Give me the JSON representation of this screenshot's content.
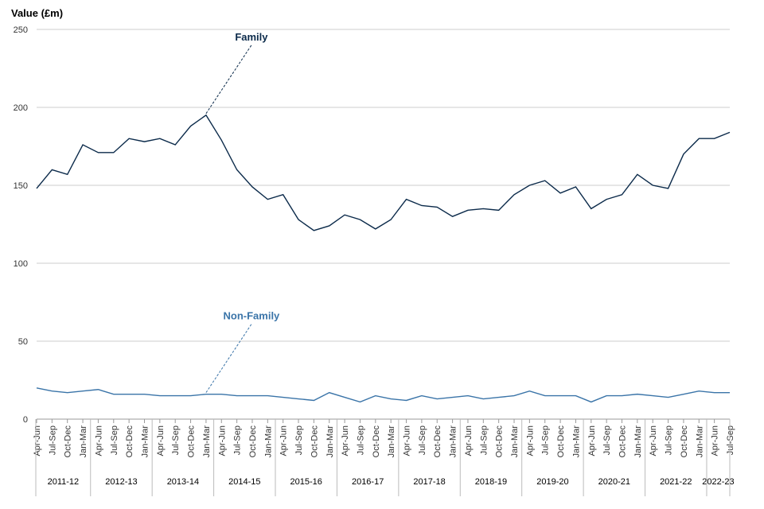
{
  "chart_data": {
    "type": "line",
    "title": "",
    "xlabel": "",
    "ylabel": "Value (£m)",
    "ylim": [
      0,
      250
    ],
    "yticks": [
      0,
      50,
      100,
      150,
      200,
      250
    ],
    "grid": true,
    "legend": "inline-labels",
    "colors": {
      "Family": "#0b2a4a",
      "Non-Family": "#3a74a8",
      "grid": "#cccccc"
    },
    "x": [
      "Apr-Jun",
      "Jul-Sep",
      "Oct-Dec",
      "Jan-Mar",
      "Apr-Jun",
      "Jul-Sep",
      "Oct-Dec",
      "Jan-Mar",
      "Apr-Jun",
      "Jul-Sep",
      "Oct-Dec",
      "Jan-Mar",
      "Apr-Jun",
      "Jul-Sep",
      "Oct-Dec",
      "Jan-Mar",
      "Apr-Jun",
      "Jul-Sep",
      "Oct-Dec",
      "Jan-Mar",
      "Apr-Jun",
      "Jul-Sep",
      "Oct-Dec",
      "Jan-Mar",
      "Apr-Jun",
      "Jul-Sep",
      "Oct-Dec",
      "Jan-Mar",
      "Apr-Jun",
      "Jul-Sep",
      "Oct-Dec",
      "Jan-Mar",
      "Apr-Jun",
      "Jul-Sep",
      "Oct-Dec",
      "Jan-Mar",
      "Apr-Jun",
      "Jul-Sep",
      "Oct-Dec",
      "Jan-Mar",
      "Apr-Jun",
      "Jul-Sep",
      "Oct-Dec",
      "Jan-Mar",
      "Apr-Jun",
      "Jul-Sep"
    ],
    "groups": [
      {
        "label": "2011-12",
        "count": 4
      },
      {
        "label": "2012-13",
        "count": 4
      },
      {
        "label": "2013-14",
        "count": 4
      },
      {
        "label": "2014-15",
        "count": 4
      },
      {
        "label": "2015-16",
        "count": 4
      },
      {
        "label": "2016-17",
        "count": 4
      },
      {
        "label": "2017-18",
        "count": 4
      },
      {
        "label": "2018-19",
        "count": 4
      },
      {
        "label": "2019-20",
        "count": 4
      },
      {
        "label": "2020-21",
        "count": 4
      },
      {
        "label": "2021-22",
        "count": 4
      },
      {
        "label": "2022-23",
        "count": 2
      }
    ],
    "series": [
      {
        "name": "Family",
        "values": [
          148,
          160,
          157,
          176,
          171,
          171,
          180,
          178,
          180,
          176,
          188,
          195,
          179,
          160,
          149,
          141,
          144,
          128,
          121,
          124,
          131,
          128,
          122,
          128,
          141,
          137,
          136,
          130,
          134,
          135,
          134,
          144,
          150,
          153,
          145,
          149,
          135,
          141,
          144,
          157,
          150,
          148,
          170,
          180,
          180,
          184
        ]
      },
      {
        "name": "Non-Family",
        "values": [
          20,
          18,
          17,
          18,
          19,
          16,
          16,
          16,
          15,
          15,
          15,
          16,
          16,
          15,
          15,
          15,
          14,
          13,
          12,
          17,
          14,
          11,
          15,
          13,
          12,
          15,
          13,
          14,
          15,
          13,
          14,
          15,
          18,
          15,
          15,
          15,
          11,
          15,
          15,
          16,
          15,
          14,
          16,
          18,
          17,
          17
        ]
      }
    ],
    "annotations": [
      {
        "series": "Family",
        "text": "Family",
        "at_index": 11
      },
      {
        "series": "Non-Family",
        "text": "Non-Family",
        "at_index": 11
      }
    ]
  }
}
